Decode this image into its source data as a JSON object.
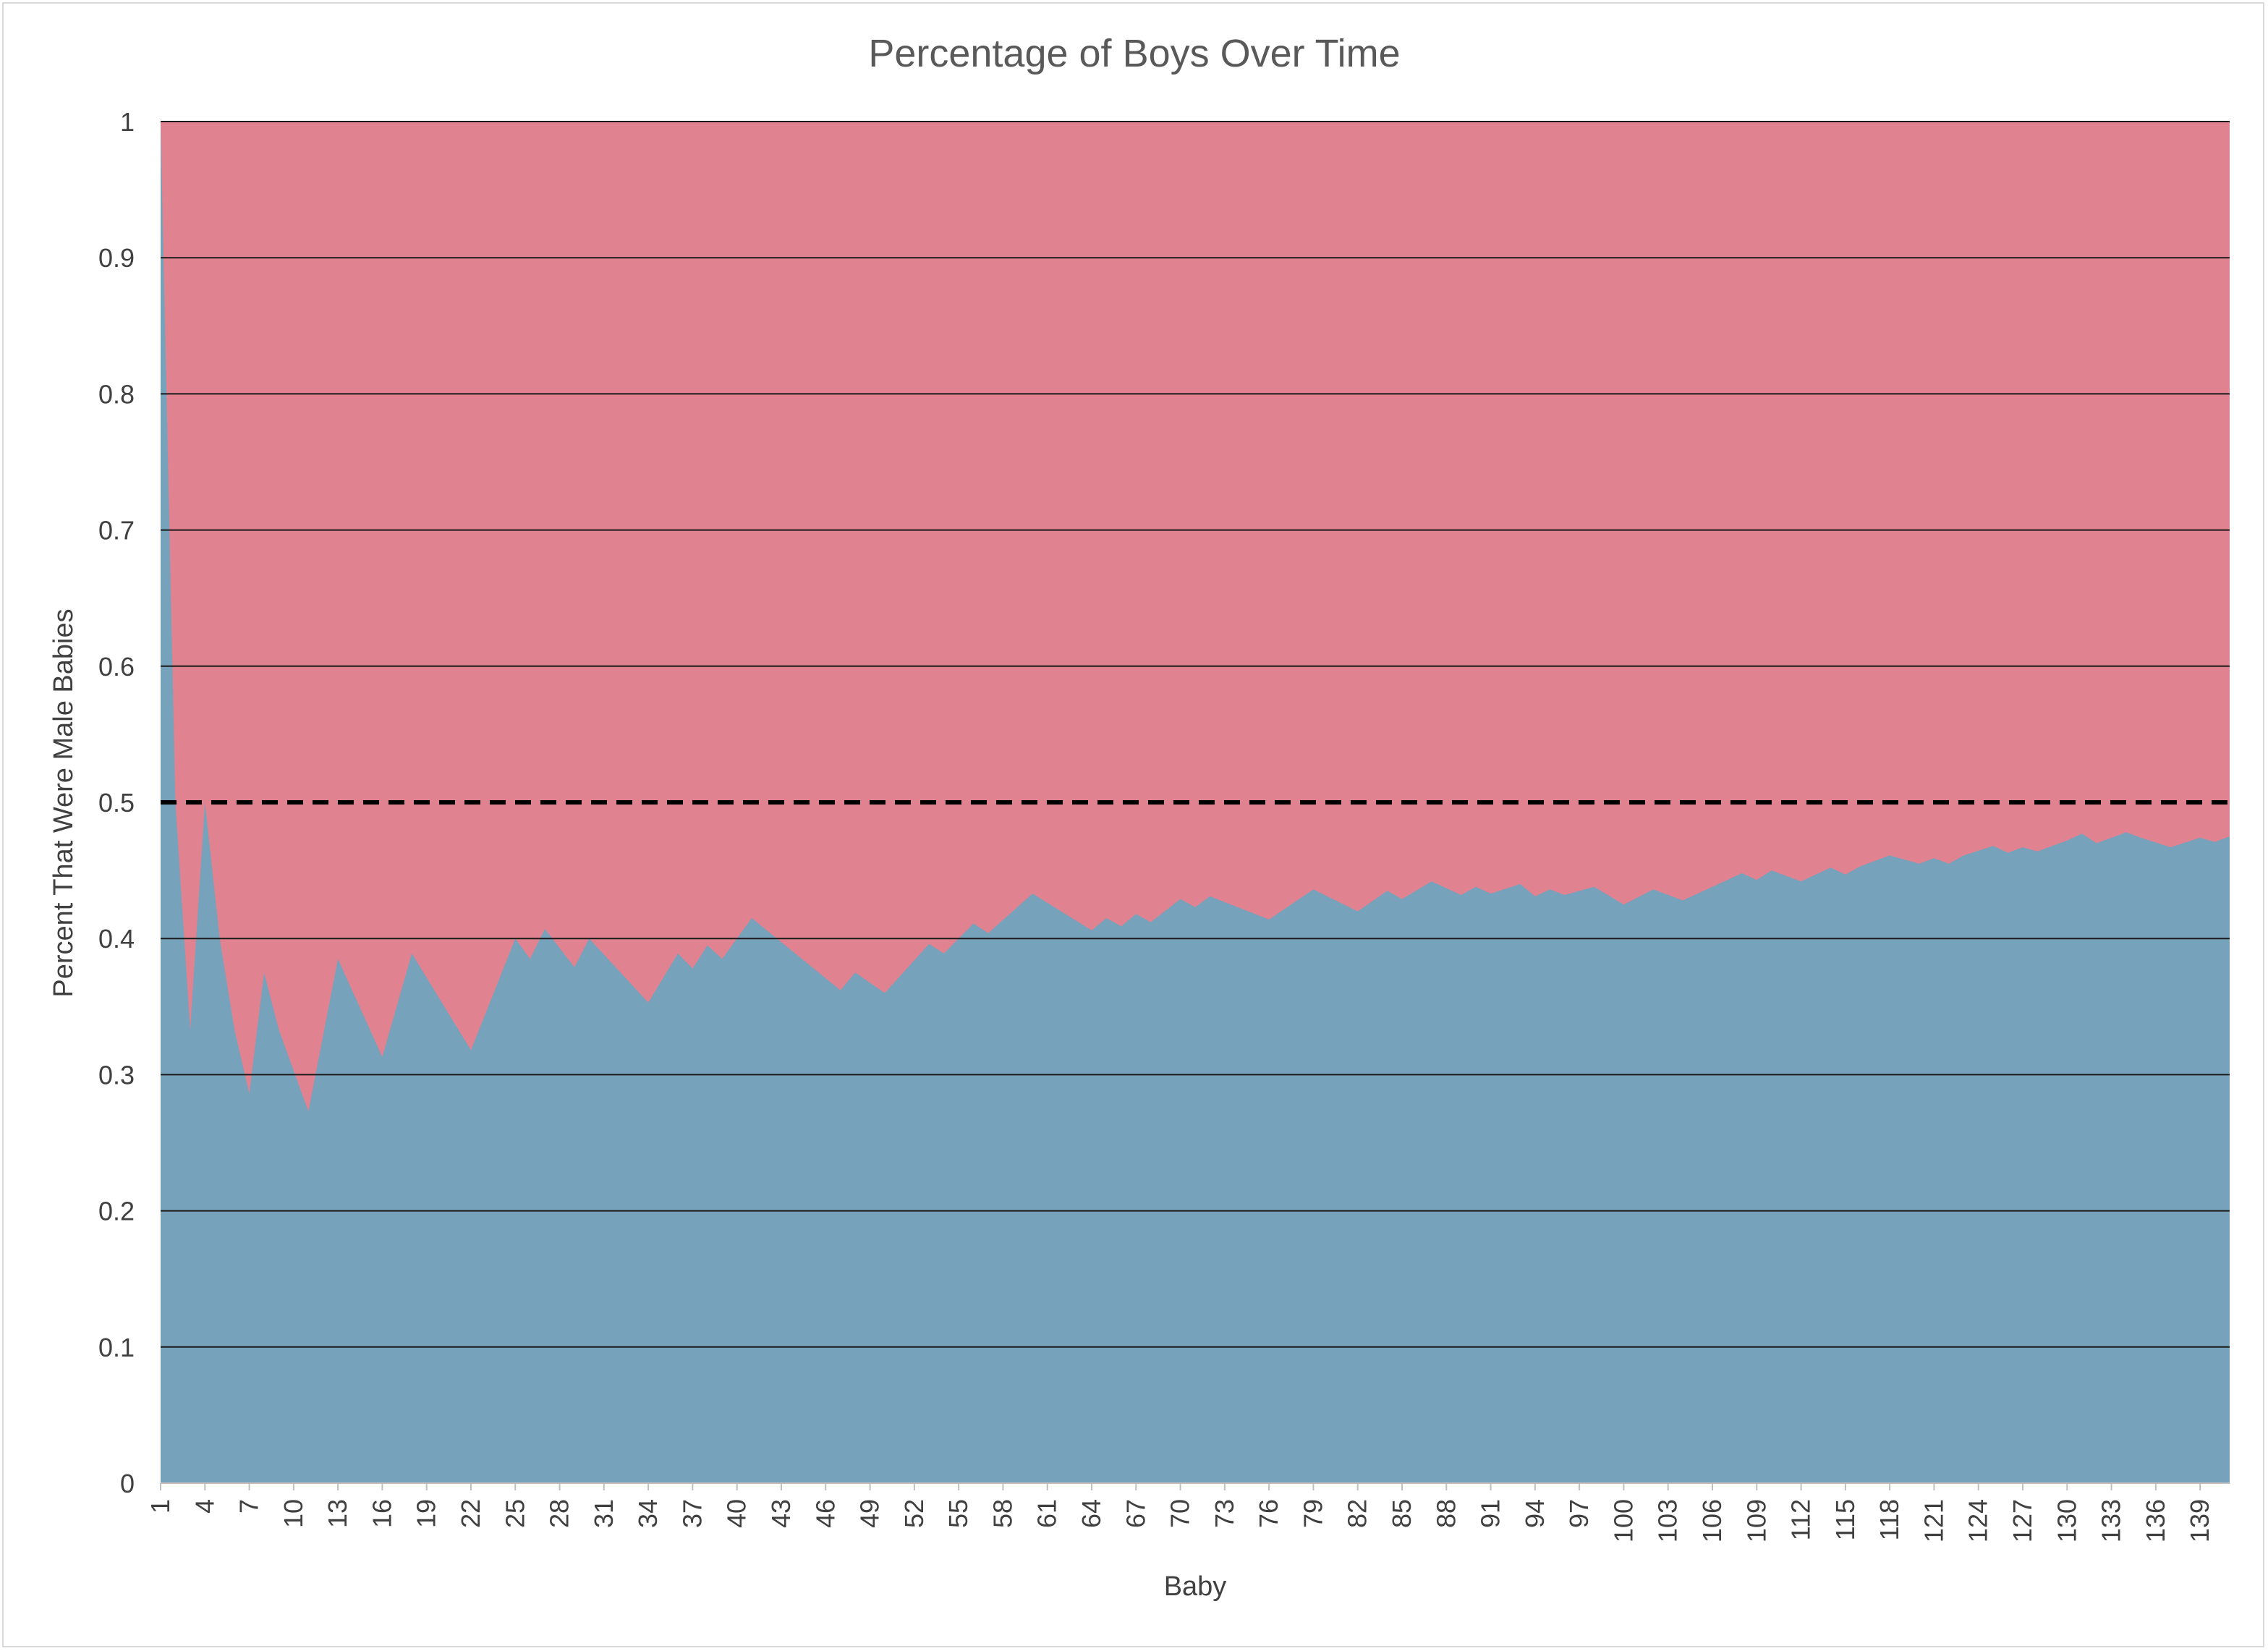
{
  "chart_data": {
    "type": "area",
    "title": "Percentage of Boys Over Time",
    "xlabel": "Baby",
    "ylabel": "Percent That Were Male Babies",
    "ylim": [
      0,
      1
    ],
    "y_ticks": [
      "0",
      "0.1",
      "0.2",
      "0.3",
      "0.4",
      "0.5",
      "0.6",
      "0.7",
      "0.8",
      "0.9",
      "1"
    ],
    "x_range": [
      1,
      141
    ],
    "x_tick_labels": [
      1,
      4,
      7,
      10,
      13,
      16,
      19,
      22,
      25,
      28,
      31,
      34,
      37,
      40,
      43,
      46,
      49,
      52,
      55,
      58,
      61,
      64,
      67,
      70,
      73,
      76,
      79,
      82,
      85,
      88,
      91,
      94,
      97,
      100,
      103,
      106,
      109,
      112,
      115,
      118,
      121,
      124,
      127,
      130,
      133,
      136,
      139
    ],
    "grid": true,
    "legend": "none",
    "reference_line": {
      "y": 0.5,
      "style": "dashed",
      "color": "#000000"
    },
    "series": [
      {
        "color": "#e0828f",
        "x": [
          1,
          141
        ],
        "values": [
          1,
          1
        ]
      },
      {
        "color": "#77a2bb",
        "x": [
          1,
          2,
          3,
          4,
          5,
          6,
          7,
          8,
          9,
          11,
          13,
          16,
          18,
          22,
          25,
          26,
          27,
          29,
          30,
          34,
          36,
          37,
          38,
          39,
          41,
          47,
          48,
          50,
          53,
          54,
          56,
          57,
          60,
          64,
          65,
          66,
          67,
          68,
          70,
          71,
          72,
          76,
          79,
          82,
          84,
          85,
          87,
          89,
          90,
          91,
          93,
          94,
          95,
          96,
          98,
          100,
          102,
          104,
          106,
          108,
          109,
          110,
          112,
          114,
          115,
          116,
          118,
          120,
          121,
          122,
          123,
          125,
          126,
          127,
          128,
          130,
          131,
          132,
          134,
          135,
          137,
          139,
          140,
          141
        ],
        "values": [
          1,
          0.5,
          0.333,
          0.5,
          0.4,
          0.333,
          0.286,
          0.375,
          0.333,
          0.273,
          0.385,
          0.313,
          0.389,
          0.318,
          0.4,
          0.385,
          0.407,
          0.379,
          0.4,
          0.353,
          0.389,
          0.378,
          0.395,
          0.385,
          0.415,
          0.362,
          0.375,
          0.36,
          0.396,
          0.389,
          0.411,
          0.404,
          0.433,
          0.406,
          0.415,
          0.409,
          0.418,
          0.412,
          0.429,
          0.423,
          0.431,
          0.414,
          0.436,
          0.42,
          0.435,
          0.429,
          0.442,
          0.432,
          0.438,
          0.433,
          0.44,
          0.431,
          0.436,
          0.432,
          0.438,
          0.425,
          0.436,
          0.428,
          0.438,
          0.448,
          0.443,
          0.45,
          0.442,
          0.452,
          0.447,
          0.453,
          0.461,
          0.455,
          0.459,
          0.455,
          0.461,
          0.468,
          0.463,
          0.467,
          0.464,
          0.472,
          0.477,
          0.47,
          0.478,
          0.474,
          0.467,
          0.474,
          0.471,
          0.475
        ]
      }
    ]
  }
}
